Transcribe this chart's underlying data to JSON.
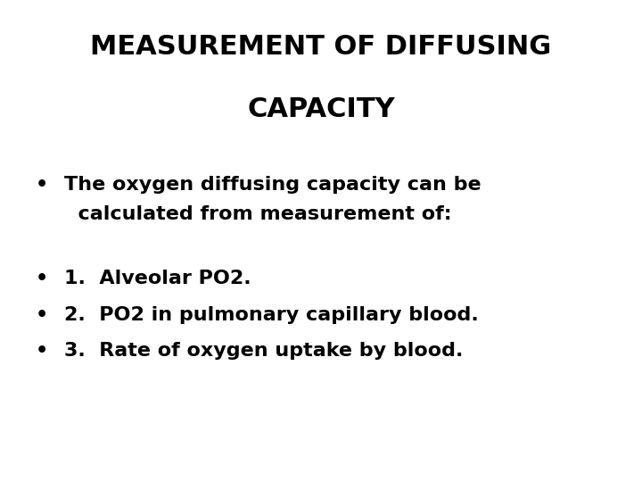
{
  "title_line1": "MEASUREMENT OF DIFFUSING",
  "title_line2": "CAPACITY",
  "background_color": "#ffffff",
  "text_color": "#000000",
  "title_fontsize": 22,
  "body_fontsize": 16,
  "bullet_intro_line1": "The oxygen diffusing capacity can be",
  "bullet_intro_line2": "  calculated from measurement of:",
  "bullet_items": [
    "1.  Alveolar PO2.",
    "2.  PO2 in pulmonary capillary blood.",
    "3.  Rate of oxygen uptake by blood."
  ],
  "bullet_symbol": "•",
  "fig_width": 7.2,
  "fig_height": 5.4,
  "dpi": 100
}
